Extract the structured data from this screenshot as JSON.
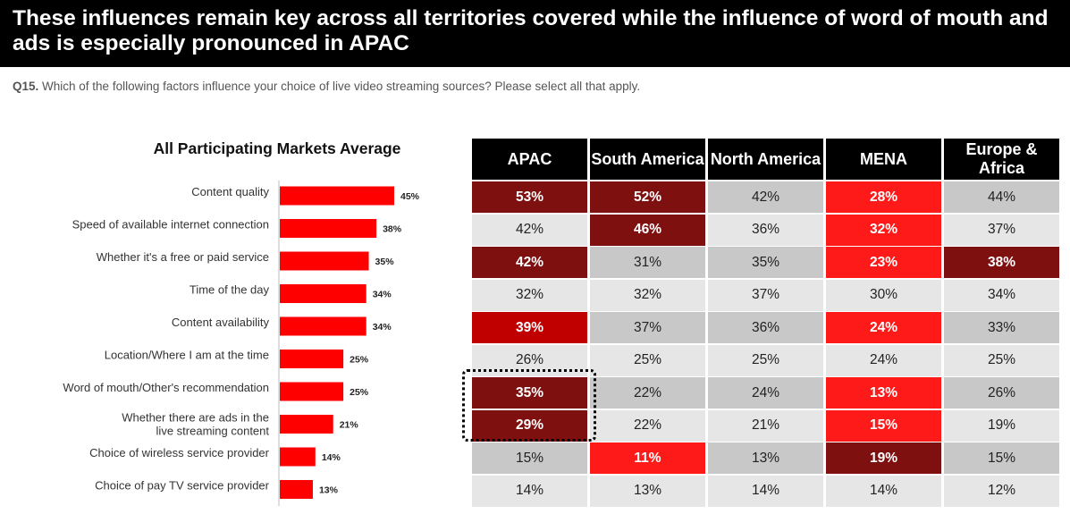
{
  "header": {
    "title": "These influences remain key across all territories covered while the influence of word of mouth and ads is especially pronounced in APAC"
  },
  "question": {
    "code": "Q15.",
    "text": " Which of the following factors influence your choice of live video streaming sources? Please select all that apply."
  },
  "colors": {
    "bar": "#ff0000",
    "dark_red": "#7f1010",
    "medium_red": "#c00000",
    "bright_red": "#ff1a1a",
    "gray": "#c8c8c8",
    "light_gray": "#e6e6e6"
  },
  "chart_data": [
    {
      "type": "bar",
      "orientation": "horizontal",
      "title": "All Participating Markets Average",
      "categories": [
        "Content quality",
        "Speed of available internet connection",
        "Whether it's a free or paid service",
        "Time of the day",
        "Content availability",
        "Location/Where I am at the time",
        "Word of mouth/Other's recommendation",
        "Whether there are ads in the live streaming content",
        "Choice of wireless service provider",
        "Choice of pay TV service provider"
      ],
      "values": [
        45,
        38,
        35,
        34,
        34,
        25,
        25,
        21,
        14,
        13
      ],
      "value_labels": [
        "45%",
        "38%",
        "35%",
        "34%",
        "34%",
        "25%",
        "25%",
        "21%",
        "14%",
        "13%"
      ],
      "xlim": [
        0,
        100
      ]
    },
    {
      "type": "table",
      "columns": [
        "APAC",
        "South America",
        "North America",
        "MENA",
        "Europe & Africa"
      ],
      "rows": [
        [
          "53%",
          "52%",
          "42%",
          "28%",
          "44%"
        ],
        [
          "42%",
          "46%",
          "36%",
          "32%",
          "37%"
        ],
        [
          "42%",
          "31%",
          "35%",
          "23%",
          "38%"
        ],
        [
          "32%",
          "32%",
          "37%",
          "30%",
          "34%"
        ],
        [
          "39%",
          "37%",
          "36%",
          "24%",
          "33%"
        ],
        [
          "26%",
          "25%",
          "25%",
          "24%",
          "25%"
        ],
        [
          "35%",
          "22%",
          "24%",
          "13%",
          "26%"
        ],
        [
          "29%",
          "22%",
          "21%",
          "15%",
          "19%"
        ],
        [
          "15%",
          "11%",
          "13%",
          "19%",
          "15%"
        ],
        [
          "14%",
          "13%",
          "14%",
          "14%",
          "12%"
        ]
      ],
      "cell_status": [
        [
          "dark",
          "dark",
          "gray",
          "bright",
          "gray"
        ],
        [
          "light",
          "dark",
          "light",
          "bright",
          "light"
        ],
        [
          "dark",
          "gray",
          "gray",
          "bright",
          "dark"
        ],
        [
          "light",
          "light",
          "light",
          "light",
          "light"
        ],
        [
          "medium",
          "gray",
          "gray",
          "bright",
          "gray"
        ],
        [
          "light",
          "light",
          "light",
          "light",
          "light"
        ],
        [
          "dark",
          "gray",
          "gray",
          "bright",
          "gray"
        ],
        [
          "dark",
          "light",
          "light",
          "bright",
          "light"
        ],
        [
          "gray",
          "bright",
          "gray",
          "dark",
          "gray"
        ],
        [
          "light",
          "light",
          "light",
          "light",
          "light"
        ]
      ]
    }
  ]
}
